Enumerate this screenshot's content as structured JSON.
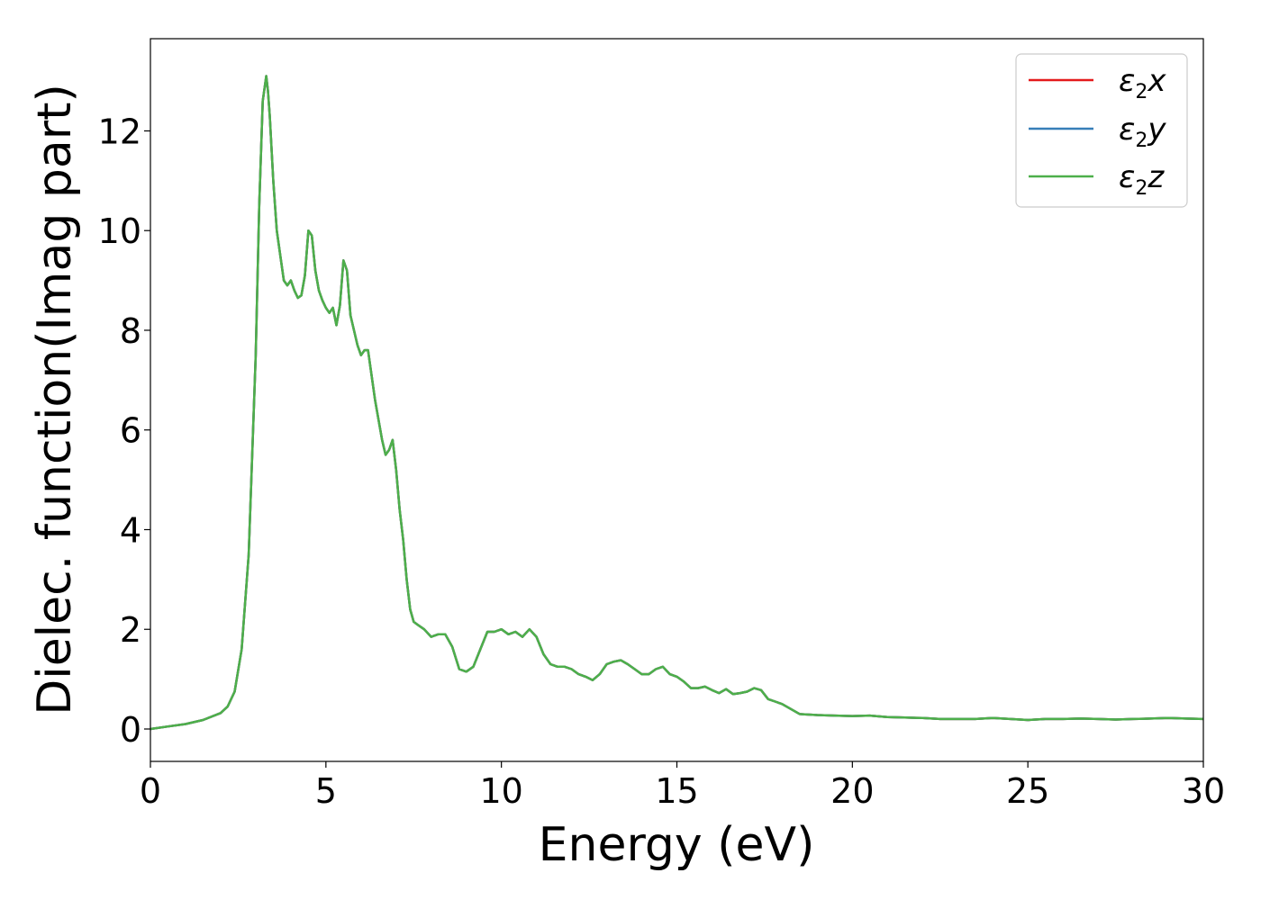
{
  "chart_data": {
    "type": "line",
    "xlabel": "Energy (eV)",
    "ylabel": "Dielec. function(Imag part)",
    "xlim": [
      0,
      30
    ],
    "ylim": [
      -0.65,
      13.85
    ],
    "xticks": [
      0,
      5,
      10,
      15,
      20,
      25,
      30
    ],
    "yticks": [
      0,
      2,
      4,
      6,
      8,
      10,
      12
    ],
    "grid": false,
    "legend_position": "top-right",
    "series": [
      {
        "name": "ε2x",
        "label_main": "ε",
        "label_sub": "2",
        "label_tail": "x",
        "color": "#e41a1c",
        "x": [
          0,
          0.5,
          1,
          1.5,
          2,
          2.2,
          2.4,
          2.6,
          2.8,
          3.0,
          3.1,
          3.2,
          3.3,
          3.35,
          3.4,
          3.5,
          3.6,
          3.7,
          3.8,
          3.9,
          4.0,
          4.1,
          4.2,
          4.3,
          4.4,
          4.5,
          4.6,
          4.7,
          4.8,
          4.9,
          5.0,
          5.1,
          5.2,
          5.3,
          5.4,
          5.5,
          5.6,
          5.7,
          5.8,
          5.9,
          6.0,
          6.1,
          6.2,
          6.3,
          6.4,
          6.5,
          6.6,
          6.7,
          6.8,
          6.9,
          7.0,
          7.1,
          7.2,
          7.3,
          7.4,
          7.5,
          7.6,
          7.8,
          8.0,
          8.2,
          8.4,
          8.6,
          8.8,
          9.0,
          9.2,
          9.4,
          9.6,
          9.8,
          10.0,
          10.2,
          10.4,
          10.6,
          10.8,
          11.0,
          11.2,
          11.4,
          11.6,
          11.8,
          12.0,
          12.2,
          12.4,
          12.6,
          12.8,
          13.0,
          13.2,
          13.4,
          13.6,
          13.8,
          14.0,
          14.2,
          14.4,
          14.6,
          14.8,
          15.0,
          15.2,
          15.4,
          15.6,
          15.8,
          16.0,
          16.2,
          16.4,
          16.6,
          16.8,
          17.0,
          17.2,
          17.4,
          17.6,
          17.8,
          18.0,
          18.5,
          19.0,
          19.5,
          20.0,
          20.5,
          21.0,
          21.5,
          22.0,
          22.5,
          23.0,
          23.5,
          24.0,
          24.5,
          25.0,
          25.5,
          26.0,
          26.5,
          27.0,
          27.5,
          28.0,
          28.5,
          29.0,
          29.5,
          30.0
        ],
        "y": [
          0.0,
          0.05,
          0.1,
          0.18,
          0.32,
          0.45,
          0.75,
          1.6,
          3.5,
          7.5,
          10.5,
          12.6,
          13.1,
          12.8,
          12.3,
          11.0,
          10.0,
          9.5,
          9.0,
          8.9,
          9.0,
          8.8,
          8.65,
          8.7,
          9.1,
          10.0,
          9.9,
          9.2,
          8.8,
          8.6,
          8.45,
          8.35,
          8.45,
          8.1,
          8.5,
          9.4,
          9.2,
          8.3,
          8.0,
          7.7,
          7.5,
          7.6,
          7.6,
          7.1,
          6.6,
          6.2,
          5.8,
          5.5,
          5.6,
          5.8,
          5.2,
          4.4,
          3.8,
          3.0,
          2.4,
          2.15,
          2.1,
          2.0,
          1.85,
          1.9,
          1.9,
          1.65,
          1.2,
          1.15,
          1.25,
          1.6,
          1.95,
          1.95,
          2.0,
          1.9,
          1.95,
          1.85,
          2.0,
          1.85,
          1.5,
          1.3,
          1.25,
          1.25,
          1.2,
          1.1,
          1.05,
          0.98,
          1.1,
          1.3,
          1.35,
          1.38,
          1.3,
          1.2,
          1.1,
          1.1,
          1.2,
          1.25,
          1.1,
          1.05,
          0.95,
          0.82,
          0.82,
          0.85,
          0.78,
          0.72,
          0.8,
          0.7,
          0.72,
          0.75,
          0.82,
          0.78,
          0.6,
          0.55,
          0.5,
          0.3,
          0.28,
          0.27,
          0.26,
          0.27,
          0.24,
          0.23,
          0.22,
          0.2,
          0.2,
          0.2,
          0.22,
          0.2,
          0.18,
          0.2,
          0.2,
          0.21,
          0.2,
          0.19,
          0.2,
          0.21,
          0.22,
          0.21,
          0.2
        ]
      },
      {
        "name": "ε2y",
        "label_main": "ε",
        "label_sub": "2",
        "label_tail": "y",
        "color": "#377eb8",
        "x": [
          0,
          0.5,
          1,
          1.5,
          2,
          2.2,
          2.4,
          2.6,
          2.8,
          3.0,
          3.1,
          3.2,
          3.3,
          3.35,
          3.4,
          3.5,
          3.6,
          3.7,
          3.8,
          3.9,
          4.0,
          4.1,
          4.2,
          4.3,
          4.4,
          4.5,
          4.6,
          4.7,
          4.8,
          4.9,
          5.0,
          5.1,
          5.2,
          5.3,
          5.4,
          5.5,
          5.6,
          5.7,
          5.8,
          5.9,
          6.0,
          6.1,
          6.2,
          6.3,
          6.4,
          6.5,
          6.6,
          6.7,
          6.8,
          6.9,
          7.0,
          7.1,
          7.2,
          7.3,
          7.4,
          7.5,
          7.6,
          7.8,
          8.0,
          8.2,
          8.4,
          8.6,
          8.8,
          9.0,
          9.2,
          9.4,
          9.6,
          9.8,
          10.0,
          10.2,
          10.4,
          10.6,
          10.8,
          11.0,
          11.2,
          11.4,
          11.6,
          11.8,
          12.0,
          12.2,
          12.4,
          12.6,
          12.8,
          13.0,
          13.2,
          13.4,
          13.6,
          13.8,
          14.0,
          14.2,
          14.4,
          14.6,
          14.8,
          15.0,
          15.2,
          15.4,
          15.6,
          15.8,
          16.0,
          16.2,
          16.4,
          16.6,
          16.8,
          17.0,
          17.2,
          17.4,
          17.6,
          17.8,
          18.0,
          18.5,
          19.0,
          19.5,
          20.0,
          20.5,
          21.0,
          21.5,
          22.0,
          22.5,
          23.0,
          23.5,
          24.0,
          24.5,
          25.0,
          25.5,
          26.0,
          26.5,
          27.0,
          27.5,
          28.0,
          28.5,
          29.0,
          29.5,
          30.0
        ],
        "y": [
          0.0,
          0.05,
          0.1,
          0.18,
          0.32,
          0.45,
          0.75,
          1.6,
          3.5,
          7.5,
          10.5,
          12.6,
          13.1,
          12.8,
          12.3,
          11.0,
          10.0,
          9.5,
          9.0,
          8.9,
          9.0,
          8.8,
          8.65,
          8.7,
          9.1,
          10.0,
          9.9,
          9.2,
          8.8,
          8.6,
          8.45,
          8.35,
          8.45,
          8.1,
          8.5,
          9.4,
          9.2,
          8.3,
          8.0,
          7.7,
          7.5,
          7.6,
          7.6,
          7.1,
          6.6,
          6.2,
          5.8,
          5.5,
          5.6,
          5.8,
          5.2,
          4.4,
          3.8,
          3.0,
          2.4,
          2.15,
          2.1,
          2.0,
          1.85,
          1.9,
          1.9,
          1.65,
          1.2,
          1.15,
          1.25,
          1.6,
          1.95,
          1.95,
          2.0,
          1.9,
          1.95,
          1.85,
          2.0,
          1.85,
          1.5,
          1.3,
          1.25,
          1.25,
          1.2,
          1.1,
          1.05,
          0.98,
          1.1,
          1.3,
          1.35,
          1.38,
          1.3,
          1.2,
          1.1,
          1.1,
          1.2,
          1.25,
          1.1,
          1.05,
          0.95,
          0.82,
          0.82,
          0.85,
          0.78,
          0.72,
          0.8,
          0.7,
          0.72,
          0.75,
          0.82,
          0.78,
          0.6,
          0.55,
          0.5,
          0.3,
          0.28,
          0.27,
          0.26,
          0.27,
          0.24,
          0.23,
          0.22,
          0.2,
          0.2,
          0.2,
          0.22,
          0.2,
          0.18,
          0.2,
          0.2,
          0.21,
          0.2,
          0.19,
          0.2,
          0.21,
          0.22,
          0.21,
          0.2
        ]
      },
      {
        "name": "ε2z",
        "label_main": "ε",
        "label_sub": "2",
        "label_tail": "z",
        "color": "#4daf4a",
        "x": [
          0,
          0.5,
          1,
          1.5,
          2,
          2.2,
          2.4,
          2.6,
          2.8,
          3.0,
          3.1,
          3.2,
          3.3,
          3.35,
          3.4,
          3.5,
          3.6,
          3.7,
          3.8,
          3.9,
          4.0,
          4.1,
          4.2,
          4.3,
          4.4,
          4.5,
          4.6,
          4.7,
          4.8,
          4.9,
          5.0,
          5.1,
          5.2,
          5.3,
          5.4,
          5.5,
          5.6,
          5.7,
          5.8,
          5.9,
          6.0,
          6.1,
          6.2,
          6.3,
          6.4,
          6.5,
          6.6,
          6.7,
          6.8,
          6.9,
          7.0,
          7.1,
          7.2,
          7.3,
          7.4,
          7.5,
          7.6,
          7.8,
          8.0,
          8.2,
          8.4,
          8.6,
          8.8,
          9.0,
          9.2,
          9.4,
          9.6,
          9.8,
          10.0,
          10.2,
          10.4,
          10.6,
          10.8,
          11.0,
          11.2,
          11.4,
          11.6,
          11.8,
          12.0,
          12.2,
          12.4,
          12.6,
          12.8,
          13.0,
          13.2,
          13.4,
          13.6,
          13.8,
          14.0,
          14.2,
          14.4,
          14.6,
          14.8,
          15.0,
          15.2,
          15.4,
          15.6,
          15.8,
          16.0,
          16.2,
          16.4,
          16.6,
          16.8,
          17.0,
          17.2,
          17.4,
          17.6,
          17.8,
          18.0,
          18.5,
          19.0,
          19.5,
          20.0,
          20.5,
          21.0,
          21.5,
          22.0,
          22.5,
          23.0,
          23.5,
          24.0,
          24.5,
          25.0,
          25.5,
          26.0,
          26.5,
          27.0,
          27.5,
          28.0,
          28.5,
          29.0,
          29.5,
          30.0
        ],
        "y": [
          0.0,
          0.05,
          0.1,
          0.18,
          0.32,
          0.45,
          0.75,
          1.6,
          3.5,
          7.5,
          10.5,
          12.6,
          13.1,
          12.8,
          12.3,
          11.0,
          10.0,
          9.5,
          9.0,
          8.9,
          9.0,
          8.8,
          8.65,
          8.7,
          9.1,
          10.0,
          9.9,
          9.2,
          8.8,
          8.6,
          8.45,
          8.35,
          8.45,
          8.1,
          8.5,
          9.4,
          9.2,
          8.3,
          8.0,
          7.7,
          7.5,
          7.6,
          7.6,
          7.1,
          6.6,
          6.2,
          5.8,
          5.5,
          5.6,
          5.8,
          5.2,
          4.4,
          3.8,
          3.0,
          2.4,
          2.15,
          2.1,
          2.0,
          1.85,
          1.9,
          1.9,
          1.65,
          1.2,
          1.15,
          1.25,
          1.6,
          1.95,
          1.95,
          2.0,
          1.9,
          1.95,
          1.85,
          2.0,
          1.85,
          1.5,
          1.3,
          1.25,
          1.25,
          1.2,
          1.1,
          1.05,
          0.98,
          1.1,
          1.3,
          1.35,
          1.38,
          1.3,
          1.2,
          1.1,
          1.1,
          1.2,
          1.25,
          1.1,
          1.05,
          0.95,
          0.82,
          0.82,
          0.85,
          0.78,
          0.72,
          0.8,
          0.7,
          0.72,
          0.75,
          0.82,
          0.78,
          0.6,
          0.55,
          0.5,
          0.3,
          0.28,
          0.27,
          0.26,
          0.27,
          0.24,
          0.23,
          0.22,
          0.2,
          0.2,
          0.2,
          0.22,
          0.2,
          0.18,
          0.2,
          0.2,
          0.21,
          0.2,
          0.19,
          0.2,
          0.21,
          0.22,
          0.21,
          0.2
        ]
      }
    ]
  }
}
